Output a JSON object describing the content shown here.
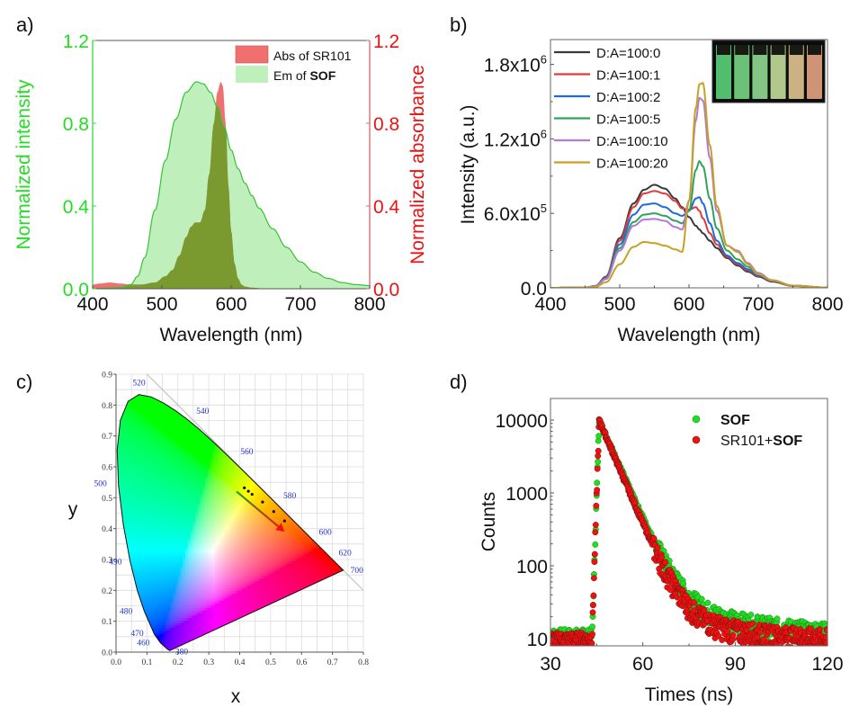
{
  "panels": {
    "a": {
      "label": "a)"
    },
    "b": {
      "label": "b)"
    },
    "c": {
      "label": "c)"
    },
    "d": {
      "label": "d)"
    }
  },
  "colors": {
    "green_axis": "#22dd22",
    "red_axis": "#ee1111",
    "abs_fill": "#f07070",
    "em_fill": "#bff0bb",
    "overlap_fill": "#7a9a30"
  },
  "chart_data": [
    {
      "id": "a",
      "type": "area",
      "title": "",
      "xlabel": "Wavelength (nm)",
      "ylabel": "Normalized intensity",
      "y2label": "Normalized absorbance",
      "xlim": [
        400,
        800
      ],
      "ylim": [
        0,
        1.2
      ],
      "y2lim": [
        0,
        1.2
      ],
      "xticks": [
        "400",
        "500",
        "600",
        "700",
        "800"
      ],
      "yticks": [
        "0.0",
        "0.4",
        "0.8",
        "1.2"
      ],
      "y2ticks": [
        "0.0",
        "0.4",
        "0.8",
        "1.2"
      ],
      "legend_position": "top-right",
      "legend": [
        {
          "text": "Abs of SR101",
          "bold": ""
        },
        {
          "text": "Em of ",
          "bold": "SOF"
        }
      ],
      "series": [
        {
          "name": "Abs of SR101",
          "axis": "right",
          "x": [
            400,
            410,
            425,
            440,
            455,
            470,
            490,
            505,
            515,
            525,
            535,
            542,
            548,
            555,
            562,
            568,
            575,
            580,
            585,
            588,
            592,
            596,
            600,
            605,
            610,
            615,
            620,
            630,
            650,
            800
          ],
          "y": [
            0.02,
            0.025,
            0.03,
            0.025,
            0.02,
            0.02,
            0.03,
            0.06,
            0.09,
            0.16,
            0.25,
            0.3,
            0.32,
            0.32,
            0.38,
            0.55,
            0.8,
            0.95,
            1.0,
            0.98,
            0.8,
            0.5,
            0.28,
            0.12,
            0.05,
            0.02,
            0.01,
            0.005,
            0.0,
            0.0
          ]
        },
        {
          "name": "Em of SOF",
          "axis": "left",
          "x": [
            400,
            440,
            455,
            465,
            475,
            490,
            505,
            520,
            535,
            550,
            560,
            570,
            580,
            590,
            600,
            610,
            620,
            630,
            640,
            660,
            680,
            700,
            720,
            740,
            760,
            780,
            800
          ],
          "y": [
            0.0,
            0.005,
            0.02,
            0.06,
            0.15,
            0.38,
            0.62,
            0.82,
            0.95,
            1.0,
            0.99,
            0.95,
            0.88,
            0.78,
            0.67,
            0.58,
            0.51,
            0.45,
            0.39,
            0.29,
            0.2,
            0.13,
            0.08,
            0.05,
            0.03,
            0.02,
            0.015
          ]
        }
      ]
    },
    {
      "id": "b",
      "type": "line",
      "title": "",
      "xlabel": "Wavelength (nm)",
      "ylabel": "Intensity (a.u.)",
      "xlim": [
        400,
        800
      ],
      "ylim": [
        0,
        2000000
      ],
      "xticks": [
        "400",
        "500",
        "600",
        "700",
        "800"
      ],
      "yticks": [
        {
          "value": 0,
          "mant": "0.0",
          "exp": ""
        },
        {
          "value": 600000,
          "mant": "6.0x10",
          "exp": "5"
        },
        {
          "value": 1200000,
          "mant": "1.2x10",
          "exp": "6"
        },
        {
          "value": 1800000,
          "mant": "1.8x10",
          "exp": "6"
        }
      ],
      "legend_position": "top-left",
      "inset": "photo of six cuvettes fluorescing from green to orange",
      "inset_colors": [
        "#5fdc80",
        "#7fe08a",
        "#98e59a",
        "#cfe8a2",
        "#efcf98",
        "#f2aa88"
      ],
      "x": [
        400,
        450,
        465,
        480,
        500,
        520,
        535,
        550,
        565,
        580,
        590,
        600,
        610,
        615,
        620,
        630,
        640,
        655,
        670,
        685,
        700,
        720,
        750,
        800
      ],
      "series": [
        {
          "name": "D:A=100:0",
          "color": "#3a3a3a",
          "values": [
            0,
            2000,
            15000,
            90000,
            400000,
            680000,
            790000,
            830000,
            800000,
            720000,
            650000,
            570000,
            500000,
            470000,
            440000,
            380000,
            320000,
            240000,
            180000,
            130000,
            90000,
            50000,
            15000,
            2000
          ]
        },
        {
          "name": "D:A=100:1",
          "color": "#e03a3a",
          "values": [
            0,
            2000,
            15000,
            85000,
            380000,
            650000,
            760000,
            780000,
            760000,
            700000,
            640000,
            630000,
            650000,
            620000,
            560000,
            440000,
            350000,
            250000,
            190000,
            140000,
            95000,
            55000,
            16000,
            2000
          ]
        },
        {
          "name": "D:A=100:2",
          "color": "#1f6ad6",
          "values": [
            0,
            2000,
            14000,
            80000,
            350000,
            590000,
            670000,
            680000,
            650000,
            600000,
            580000,
            620000,
            720000,
            730000,
            680000,
            520000,
            380000,
            260000,
            200000,
            150000,
            100000,
            56000,
            17000,
            2000
          ]
        },
        {
          "name": "D:A=100:5",
          "color": "#2ea35a",
          "values": [
            0,
            2000,
            13000,
            75000,
            320000,
            530000,
            590000,
            600000,
            580000,
            540000,
            520000,
            620000,
            950000,
            1020000,
            980000,
            720000,
            480000,
            300000,
            230000,
            170000,
            110000,
            60000,
            18000,
            2000
          ]
        },
        {
          "name": "D:A=100:10",
          "color": "#b07ad8",
          "values": [
            0,
            2000,
            12000,
            70000,
            300000,
            500000,
            550000,
            555000,
            540000,
            490000,
            470000,
            700000,
            1350000,
            1530000,
            1510000,
            1050000,
            620000,
            340000,
            300000,
            200000,
            120000,
            62000,
            18000,
            2000
          ]
        },
        {
          "name": "D:A=100:20",
          "color": "#c9a020",
          "values": [
            0,
            1500,
            8000,
            45000,
            190000,
            330000,
            370000,
            360000,
            340000,
            310000,
            290000,
            700000,
            1450000,
            1640000,
            1650000,
            1150000,
            660000,
            340000,
            290000,
            190000,
            110000,
            60000,
            17000,
            2000
          ]
        }
      ]
    },
    {
      "id": "c",
      "type": "scatter",
      "title": "",
      "xlabel": "x",
      "ylabel": "y",
      "xlim": [
        0,
        0.8
      ],
      "ylim": [
        0,
        0.9
      ],
      "xticks": [
        "0.0",
        "0.1",
        "0.2",
        "0.3",
        "0.4",
        "0.5",
        "0.6",
        "0.7",
        "0.8"
      ],
      "yticks": [
        "0.0",
        "0.1",
        "0.2",
        "0.3",
        "0.4",
        "0.5",
        "0.6",
        "0.7",
        "0.8",
        "0.9"
      ],
      "grid": true,
      "diagram": "CIE 1931 chromaticity diagram",
      "wavelength_labels": [
        {
          "text": "520",
          "x": 0.074,
          "y": 0.834
        },
        {
          "text": "540",
          "x": 0.23,
          "y": 0.754
        },
        {
          "text": "560",
          "x": 0.373,
          "y": 0.624
        },
        {
          "text": "580",
          "x": 0.512,
          "y": 0.487
        },
        {
          "text": "600",
          "x": 0.627,
          "y": 0.372
        },
        {
          "text": "620",
          "x": 0.691,
          "y": 0.308
        },
        {
          "text": "700",
          "x": 0.735,
          "y": 0.265
        },
        {
          "text": "500",
          "x": 0.008,
          "y": 0.538
        },
        {
          "text": "490",
          "x": 0.045,
          "y": 0.295
        },
        {
          "text": "480",
          "x": 0.091,
          "y": 0.133
        },
        {
          "text": "470",
          "x": 0.124,
          "y": 0.058
        },
        {
          "text": "460",
          "x": 0.144,
          "y": 0.03
        },
        {
          "text": "380",
          "x": 0.174,
          "y": 0.005
        }
      ],
      "points_x": [
        0.415,
        0.428,
        0.44,
        0.474,
        0.51,
        0.545
      ],
      "points_y": [
        0.532,
        0.521,
        0.511,
        0.486,
        0.455,
        0.425
      ],
      "arrow": {
        "from": [
          0.39,
          0.52
        ],
        "to": [
          0.545,
          0.39
        ],
        "start_color": "#2a9a2a",
        "end_color": "#ee1111"
      }
    },
    {
      "id": "d",
      "type": "scatter",
      "title": "",
      "xlabel": "Times (ns)",
      "ylabel": "Counts",
      "xlim": [
        30,
        120
      ],
      "ylim": [
        8,
        20000
      ],
      "yscale": "log",
      "xticks": [
        "30",
        "60",
        "90",
        "120"
      ],
      "yticks": [
        {
          "value": 10,
          "label": "10"
        },
        {
          "value": 100,
          "label": "100"
        },
        {
          "value": 1000,
          "label": "1000"
        },
        {
          "value": 10000,
          "label": "10000"
        }
      ],
      "legend_position": "top-right",
      "legend": [
        {
          "prefix": "",
          "bold": "SOF"
        },
        {
          "prefix": "SR101+",
          "bold": "SOF"
        }
      ],
      "series": [
        {
          "name": "SOF",
          "color": "#22dd22",
          "rise_start": 43.5,
          "peak_time": 45.8,
          "peak": 10000,
          "tau_fast": 4.5,
          "amp_slow": 40,
          "tau_slow": 25,
          "background": 10
        },
        {
          "name": "SR101+SOF",
          "color": "#ee1111",
          "rise_start": 43.5,
          "peak_time": 45.8,
          "peak": 10000,
          "tau_fast": 4.3,
          "amp_slow": 28,
          "tau_slow": 22,
          "background": 9
        }
      ]
    }
  ]
}
